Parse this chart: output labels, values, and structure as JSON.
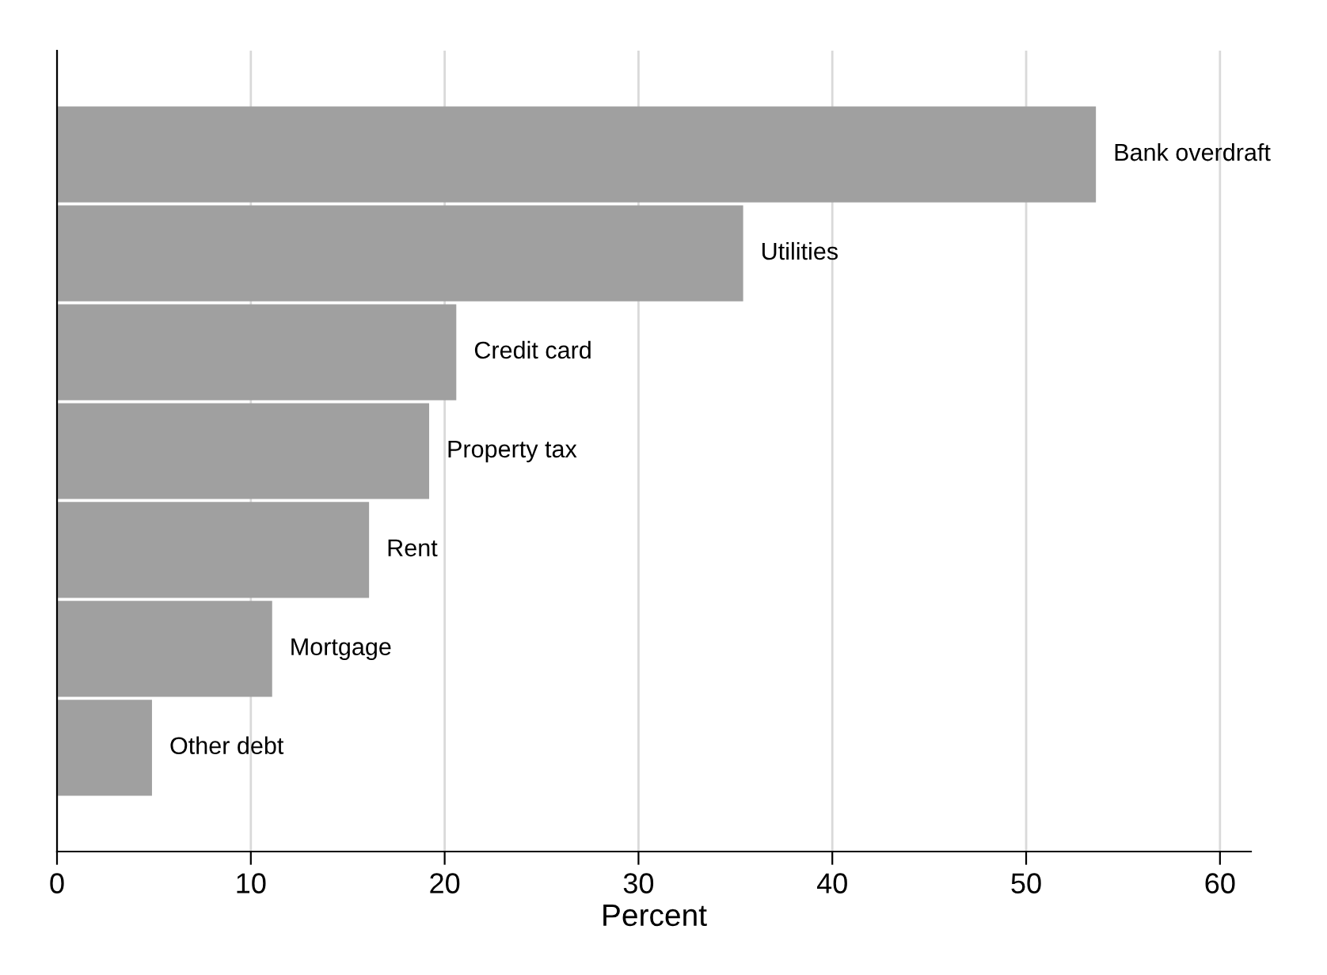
{
  "chart_data": {
    "type": "bar",
    "orientation": "horizontal",
    "xlabel": "Percent",
    "categories": [
      "Bank overdraft",
      "Utilities",
      "Credit card",
      "Property tax",
      "Rent",
      "Mortgage",
      "Other debt"
    ],
    "values": [
      53.6,
      35.4,
      20.6,
      19.2,
      16.1,
      11.1,
      4.9
    ],
    "color": "#a0a0a0",
    "xlim": [
      0,
      61.6
    ],
    "xticks": [
      0,
      10,
      20,
      30,
      40,
      50,
      60
    ],
    "grid": "x",
    "legend": false
  }
}
